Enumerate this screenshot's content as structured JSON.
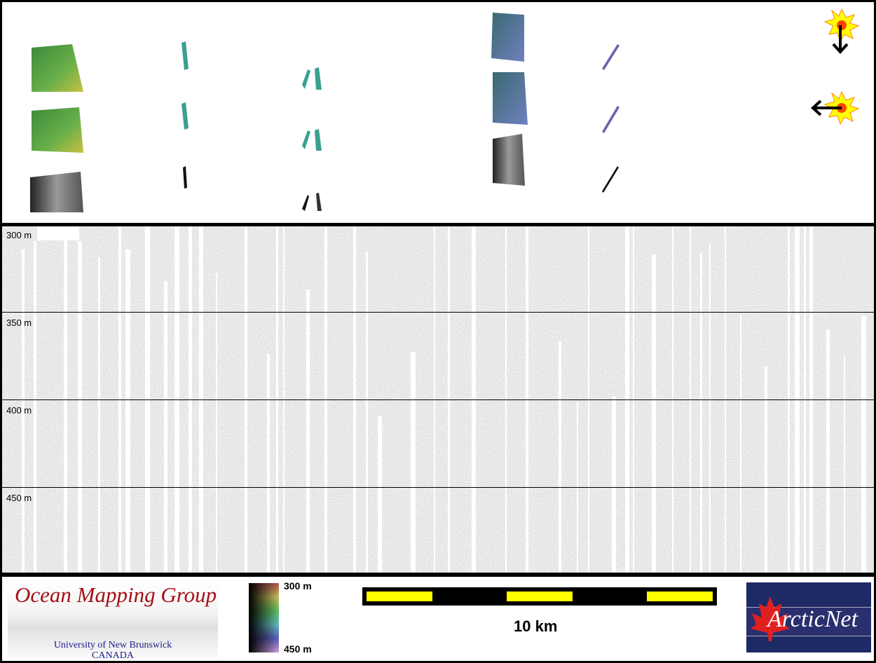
{
  "depth_axis": {
    "labels": [
      "300 m",
      "350 m",
      "400 m",
      "450 m"
    ]
  },
  "logos": {
    "omg_title": "Ocean Mapping Group",
    "omg_university": "University of New Brunswick",
    "omg_country": "CANADA",
    "arcticnet": "ArcticNet"
  },
  "colorbar": {
    "top_label": "300 m",
    "bottom_label": "450 m"
  },
  "scale": {
    "label": "10 km"
  },
  "sun_icons": [
    "sun-illumination-from-north",
    "sun-illumination-from-east"
  ],
  "colors": {
    "scale_bar": "#ffff00",
    "title_red": "#a50f16"
  }
}
